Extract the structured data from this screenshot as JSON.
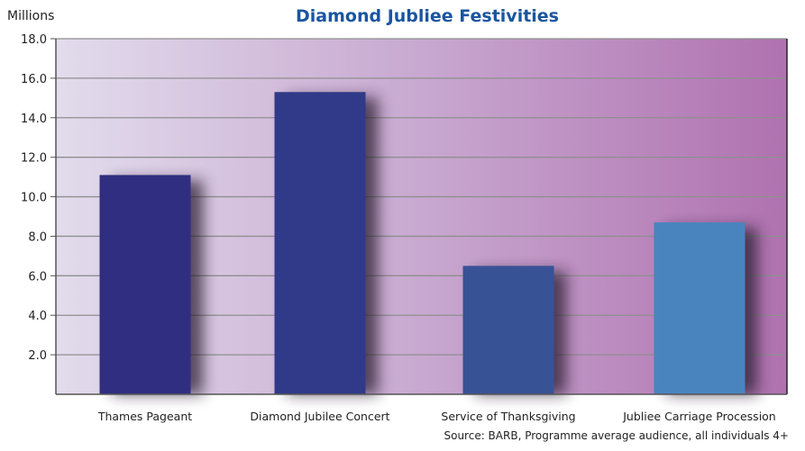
{
  "chart_data": {
    "type": "bar",
    "title": "Diamond Jubliee Festivities",
    "ylabel": "Millions",
    "xlabel": "",
    "categories": [
      "Thames Pageant",
      "Diamond Jubilee Concert",
      "Service of Thanksgiving",
      "Jubliee Carriage Procession"
    ],
    "values": [
      11.1,
      15.3,
      6.5,
      8.7
    ],
    "bar_colors": [
      "#302e80",
      "#303a88",
      "#385296",
      "#4a84bf"
    ],
    "ylim": [
      0,
      18
    ],
    "yticks": [
      "2.0",
      "4.0",
      "6.0",
      "8.0",
      "10.0",
      "12.0",
      "14.0",
      "16.0",
      "18.0"
    ],
    "grid": true,
    "legend": "none",
    "source": "Source:  BARB, Programme average audience, all individuals 4+",
    "title_color": "#1a55a0"
  }
}
